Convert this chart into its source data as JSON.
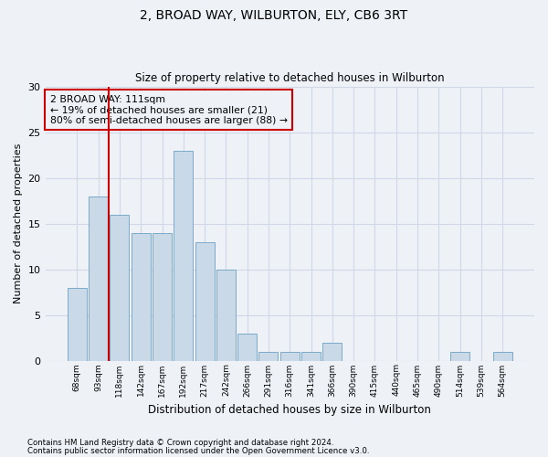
{
  "title": "2, BROAD WAY, WILBURTON, ELY, CB6 3RT",
  "subtitle": "Size of property relative to detached houses in Wilburton",
  "xlabel": "Distribution of detached houses by size in Wilburton",
  "ylabel": "Number of detached properties",
  "bar_labels": [
    "68sqm",
    "93sqm",
    "118sqm",
    "142sqm",
    "167sqm",
    "192sqm",
    "217sqm",
    "242sqm",
    "266sqm",
    "291sqm",
    "316sqm",
    "341sqm",
    "366sqm",
    "390sqm",
    "415sqm",
    "440sqm",
    "465sqm",
    "490sqm",
    "514sqm",
    "539sqm",
    "564sqm"
  ],
  "bar_values": [
    8,
    18,
    16,
    14,
    14,
    23,
    13,
    10,
    3,
    1,
    1,
    1,
    2,
    0,
    0,
    0,
    0,
    0,
    1,
    0,
    1
  ],
  "bar_color": "#c9d9e8",
  "bar_edgecolor": "#7aaac8",
  "annotation_box_text": "2 BROAD WAY: 111sqm\n← 19% of detached houses are smaller (21)\n80% of semi-detached houses are larger (88) →",
  "annotation_box_color": "#cc0000",
  "ylim": [
    0,
    30
  ],
  "grid_color": "#d0d8e8",
  "footer1": "Contains HM Land Registry data © Crown copyright and database right 2024.",
  "footer2": "Contains public sector information licensed under the Open Government Licence v3.0.",
  "bg_color": "#eef2f7"
}
